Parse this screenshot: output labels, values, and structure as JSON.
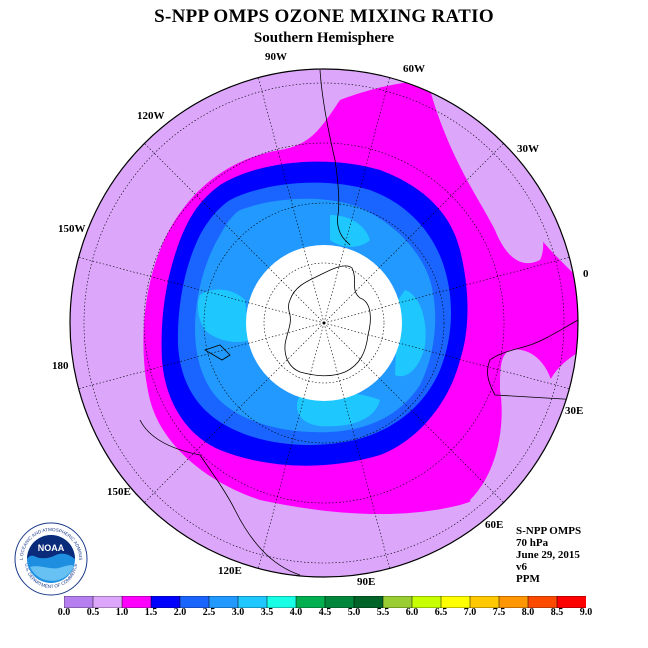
{
  "title": "S-NPP OMPS OZONE MIXING RATIO",
  "subtitle": "Southern Hemisphere",
  "longitude_labels": [
    "90W",
    "60W",
    "30W",
    "0",
    "30E",
    "60E",
    "90E",
    "120E",
    "150E",
    "180",
    "150W",
    "120W"
  ],
  "info": {
    "instrument": "S-NPP OMPS",
    "pressure": "70 hPa",
    "date": "June 29, 2015",
    "version": "v6",
    "units": "PPM"
  },
  "logo": {
    "text": "NOAA",
    "ring_text": "NATIONAL OCEANIC AND ATMOSPHERIC ADMINISTRATION",
    "ring_text_bottom": "U.S. DEPARTMENT OF COMMERCE"
  },
  "colorbar": {
    "ticks": [
      "0.0",
      "0.5",
      "1.0",
      "1.5",
      "2.0",
      "2.5",
      "3.0",
      "3.5",
      "4.0",
      "4.5",
      "5.0",
      "5.5",
      "6.0",
      "6.5",
      "7.0",
      "7.5",
      "8.0",
      "8.5",
      "9.0"
    ],
    "colors": [
      "#b57ff0",
      "#dca7fb",
      "#ff00ff",
      "#0000ff",
      "#1a64ff",
      "#2199ff",
      "#1ec8ff",
      "#19ffe6",
      "#00b050",
      "#00873c",
      "#006428",
      "#9acd32",
      "#c8ff00",
      "#ffff00",
      "#ffc800",
      "#ff9600",
      "#ff4b00",
      "#ff0000",
      "#8b4513"
    ]
  },
  "map": {
    "projection": "polar stereographic, South Pole centered",
    "no_data_region": "polar night (white disc)",
    "colors": {
      "lilac": "#dca7fb",
      "magenta": "#ff00ff",
      "dark_blue": "#0000ff",
      "blue": "#1a64ff",
      "mid_blue": "#2199ff",
      "light_blue": "#1ec8ff"
    }
  }
}
